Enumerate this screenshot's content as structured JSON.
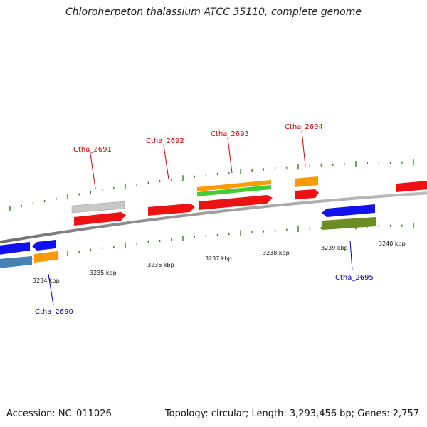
{
  "title": "Chloroherpeton thalassium ATCC 35110, complete genome",
  "accession": "Accession: NC_011026",
  "summary": "Topology: circular; Length: 3,293,456 bp; Genes: 2,757",
  "colors": {
    "backbone": "#8a8a8a",
    "tick": "#3a7d1f",
    "forward_label": "#cc0000",
    "reverse_label": "#0000aa"
  },
  "ticks": [
    {
      "label": "3234 kbp"
    },
    {
      "label": "3235 kbp"
    },
    {
      "label": "3236 kbp"
    },
    {
      "label": "3237 kbp"
    },
    {
      "label": "3238 kbp"
    },
    {
      "label": "3239 kbp"
    },
    {
      "label": "3240 kbp"
    }
  ],
  "labels": {
    "Ctha_2690": "Ctha_2690",
    "Ctha_2691": "Ctha_2691",
    "Ctha_2692": "Ctha_2692",
    "Ctha_2693": "Ctha_2693",
    "Ctha_2694": "Ctha_2694",
    "Ctha_2695": "Ctha_2695"
  },
  "feature_colors": {
    "cds": "#ee1111",
    "gray": "#bbbbbb",
    "orange": "#ff9900",
    "green": "#44cc33",
    "blue": "#1111ee",
    "steelblue": "#4682b4",
    "olive": "#6b8e23"
  }
}
